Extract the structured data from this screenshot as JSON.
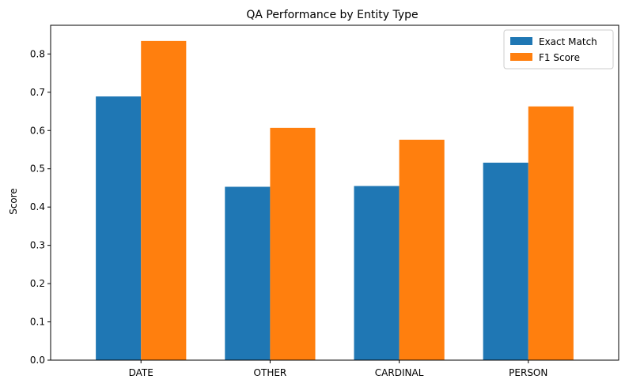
{
  "chart_data": {
    "type": "bar",
    "title": "QA Performance by Entity Type",
    "ylabel": "Score",
    "xlabel": "",
    "categories": [
      "DATE",
      "OTHER",
      "CARDINAL",
      "PERSON"
    ],
    "series": [
      {
        "name": "Exact Match",
        "color": "#1f77b4",
        "values": [
          0.689,
          0.453,
          0.455,
          0.516
        ]
      },
      {
        "name": "F1 Score",
        "color": "#ff7f0e",
        "values": [
          0.834,
          0.607,
          0.576,
          0.663
        ]
      }
    ],
    "ylim": [
      0,
      0.875
    ],
    "yticks": [
      "0.0",
      "0.1",
      "0.2",
      "0.3",
      "0.4",
      "0.5",
      "0.6",
      "0.7",
      "0.8"
    ],
    "legend_position": "top-right",
    "grid": false
  }
}
